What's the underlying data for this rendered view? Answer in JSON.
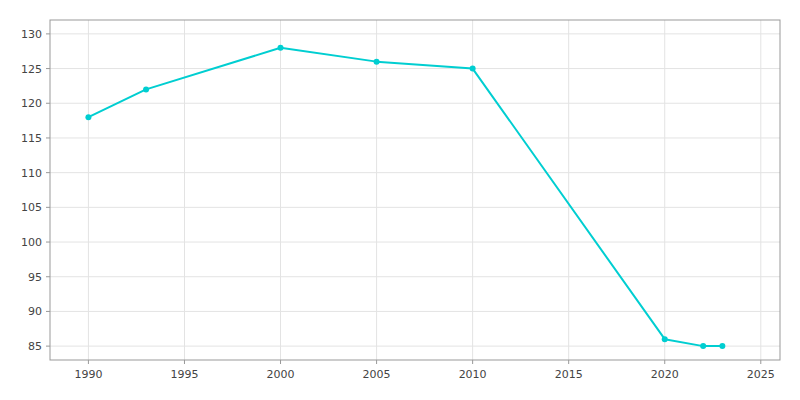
{
  "chart_data": {
    "type": "line",
    "x": [
      1990,
      1993,
      2000,
      2005,
      2010,
      2020,
      2022,
      2023
    ],
    "values": [
      118,
      122,
      128,
      126,
      125,
      86,
      85,
      85
    ],
    "color": "#00CED1",
    "marker": "circle",
    "xlim": [
      1988,
      2026
    ],
    "ylim": [
      83,
      132
    ],
    "xticks": [
      1990,
      1995,
      2000,
      2005,
      2010,
      2015,
      2020,
      2025
    ],
    "yticks": [
      85,
      90,
      95,
      100,
      105,
      110,
      115,
      120,
      125,
      130
    ],
    "grid": true
  }
}
